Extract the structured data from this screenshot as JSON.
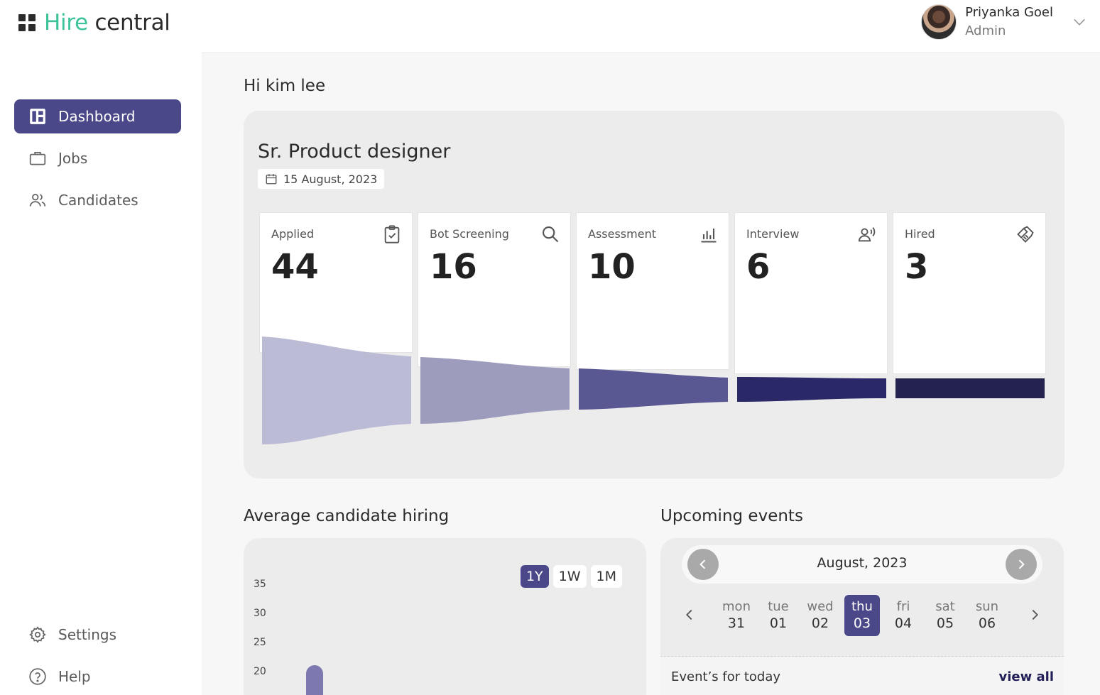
{
  "brand": {
    "hire": "Hire",
    "central": "central"
  },
  "nav": {
    "items": [
      {
        "label": "Dashboard",
        "icon": "dashboard-icon",
        "active": true
      },
      {
        "label": "Jobs",
        "icon": "briefcase-icon",
        "active": false
      },
      {
        "label": "Candidates",
        "icon": "users-icon",
        "active": false
      }
    ],
    "bottom": [
      {
        "label": "Settings",
        "icon": "gear-icon"
      },
      {
        "label": "Help",
        "icon": "help-icon"
      }
    ]
  },
  "user": {
    "name": "Priyanka Goel",
    "role": "Admin"
  },
  "greeting": "Hi kim lee",
  "job": {
    "title": "Sr. Product designer",
    "date": "15 August, 2023",
    "stages": [
      {
        "label": "Applied",
        "value": "44",
        "icon": "clipboard-check-icon"
      },
      {
        "label": "Bot Screening",
        "value": "16",
        "icon": "search-icon"
      },
      {
        "label": "Assessment",
        "value": "10",
        "icon": "bar-chart-icon"
      },
      {
        "label": "Interview",
        "value": "6",
        "icon": "speaking-person-icon"
      },
      {
        "label": "Hired",
        "value": "3",
        "icon": "handshake-icon"
      }
    ]
  },
  "avg_hiring": {
    "title": "Average candidate hiring",
    "ranges": [
      "1Y",
      "1W",
      "1M"
    ],
    "active_range": "1Y",
    "chart_data": {
      "type": "bar",
      "yticks": [
        "35",
        "30",
        "25",
        "20"
      ],
      "values": [
        20
      ]
    }
  },
  "events": {
    "title": "Upcoming events",
    "month": "August, 2023",
    "days": [
      {
        "name": "mon",
        "num": "31"
      },
      {
        "name": "tue",
        "num": "01"
      },
      {
        "name": "wed",
        "num": "02"
      },
      {
        "name": "thu",
        "num": "03",
        "active": true
      },
      {
        "name": "fri",
        "num": "04"
      },
      {
        "name": "sat",
        "num": "05"
      },
      {
        "name": "sun",
        "num": "06"
      }
    ],
    "today_label": "Event’s for today",
    "view_all": "view all"
  },
  "colors": {
    "accent": "#4a4888",
    "brand_green": "#3cc39a",
    "funnel": [
      "#bcbbd5",
      "#9d9cbd",
      "#5a5893",
      "#2a2866",
      "#24234f"
    ]
  }
}
